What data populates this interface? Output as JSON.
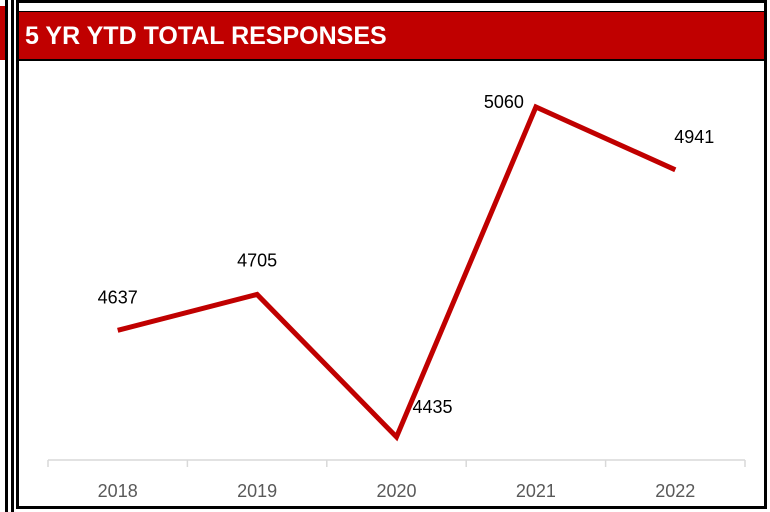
{
  "title": "5 YR YTD TOTAL RESPONSES",
  "colors": {
    "header_bg": "#c00000",
    "line": "#c00000",
    "axis": "#d9d9d9"
  },
  "chart_data": {
    "type": "line",
    "title": "5 YR YTD TOTAL RESPONSES",
    "categories": [
      "2018",
      "2019",
      "2020",
      "2021",
      "2022"
    ],
    "series": [
      {
        "values": [
          4637,
          4705,
          4435,
          5060,
          4941
        ]
      }
    ],
    "data_labels": [
      "4637",
      "4705",
      "4435",
      "5060",
      "4941"
    ],
    "ylim": [
      4435,
      5060
    ],
    "grid": false,
    "legend": "none"
  }
}
